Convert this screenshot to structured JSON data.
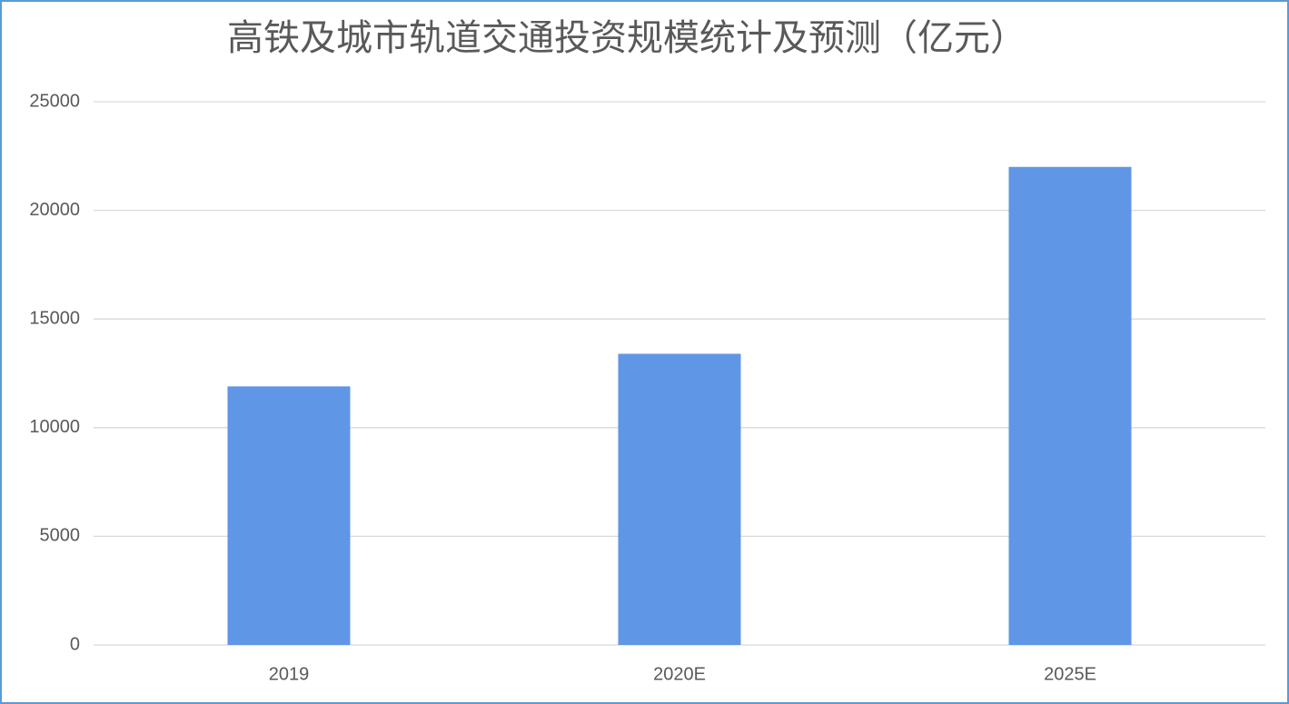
{
  "chart_data": {
    "type": "bar",
    "title": "高铁及城市轨道交通投资规模统计及预测（亿元）",
    "categories": [
      "2019",
      "2020E",
      "2025E"
    ],
    "values": [
      11900,
      13400,
      22000
    ],
    "color": "#5f96e5",
    "ylim": [
      0,
      25000
    ],
    "yticks": [
      0,
      5000,
      10000,
      15000,
      20000,
      25000
    ],
    "grid": true
  }
}
